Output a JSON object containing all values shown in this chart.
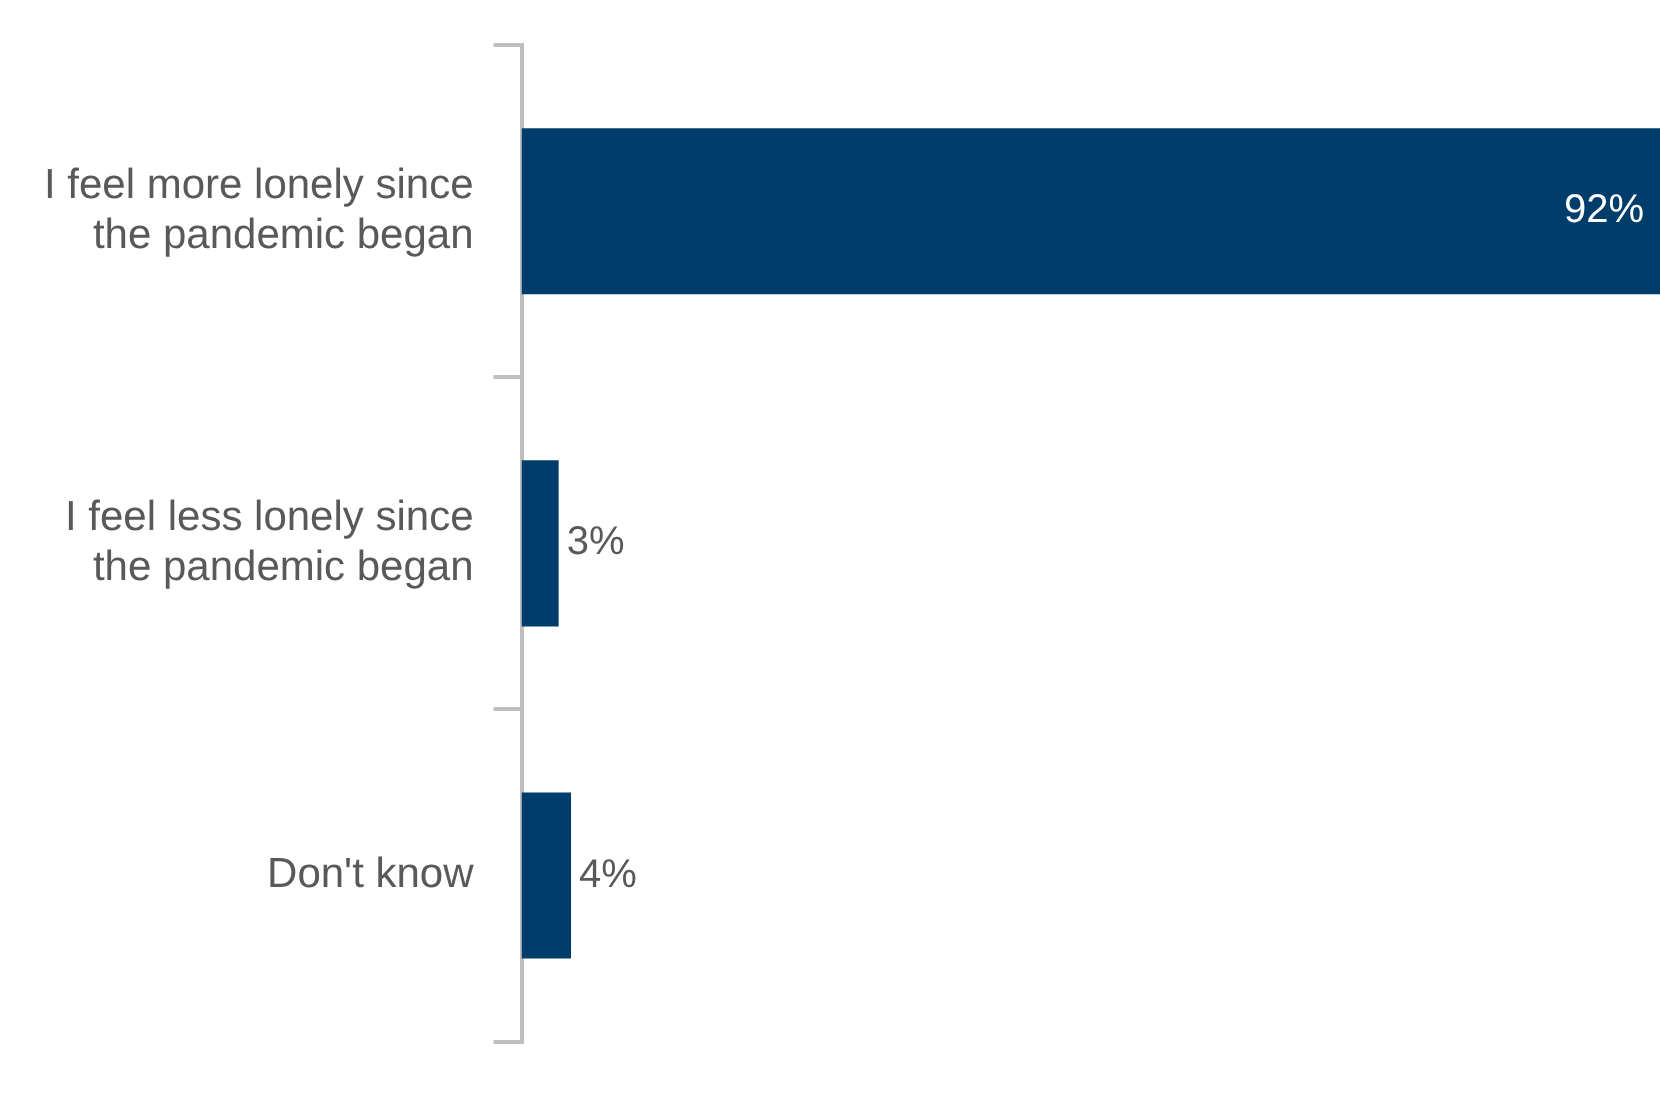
{
  "chart_data": {
    "type": "bar",
    "orientation": "horizontal",
    "categories": [
      "I feel more lonely since the pandemic began",
      "I feel less lonely since the pandemic began",
      "Don't know"
    ],
    "values": [
      92,
      3,
      4
    ],
    "color": "#003d6b",
    "value_labels": [
      "92%",
      "3%",
      "4%"
    ]
  }
}
